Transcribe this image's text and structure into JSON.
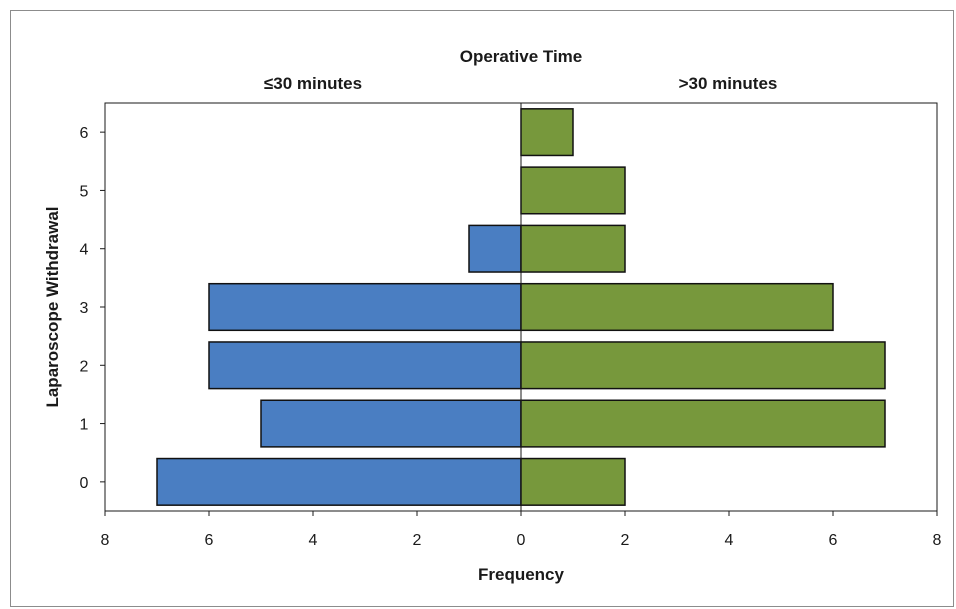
{
  "chart_data": {
    "type": "bar",
    "orientation": "horizontal-diverging",
    "title": "Operative Time",
    "xlabel": "Frequency",
    "ylabel": "Laparoscope Withdrawal",
    "categories": [
      "0",
      "1",
      "2",
      "3",
      "4",
      "5",
      "6"
    ],
    "series": [
      {
        "name": "≤30 minutes",
        "side": "left",
        "color": "#4a7ec2",
        "values": [
          7,
          5,
          6,
          6,
          1,
          0,
          0
        ]
      },
      {
        "name": ">30 minutes",
        "side": "right",
        "color": "#77983c",
        "values": [
          2,
          7,
          7,
          6,
          2,
          2,
          1
        ]
      }
    ],
    "xlim": [
      -8,
      8
    ],
    "xticks": [
      -8,
      -6,
      -4,
      -2,
      0,
      2,
      4,
      6,
      8
    ],
    "xtick_labels": [
      "8",
      "6",
      "4",
      "2",
      "0",
      "2",
      "4",
      "6",
      "8"
    ],
    "grid": false,
    "legend": "none"
  }
}
